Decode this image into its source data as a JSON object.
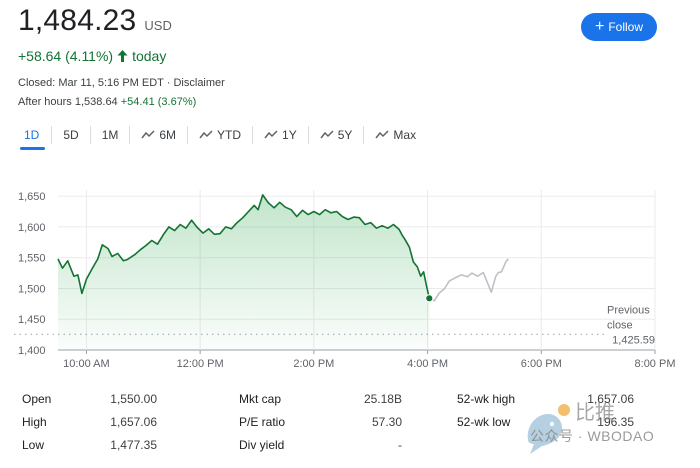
{
  "quote": {
    "price": "1,484.23",
    "currency": "USD",
    "change": "+58.64 (4.11%)",
    "change_arrow": "arrow-up-icon",
    "period": "today",
    "closed": "Closed: Mar 11, 5:16 PM EDT · Disclaimer",
    "after_label": "After hours 1,538.64",
    "after_change": "+54.41 (3.67%)"
  },
  "follow_button": {
    "label": "Follow",
    "icon": "plus-icon"
  },
  "tabs": [
    {
      "label": "1D",
      "active": true,
      "icon": ""
    },
    {
      "label": "5D",
      "active": false,
      "icon": ""
    },
    {
      "label": "1M",
      "active": false,
      "icon": ""
    },
    {
      "label": "6M",
      "active": false,
      "icon": "trend-icon"
    },
    {
      "label": "YTD",
      "active": false,
      "icon": "trend-icon"
    },
    {
      "label": "1Y",
      "active": false,
      "icon": "trend-icon"
    },
    {
      "label": "5Y",
      "active": false,
      "icon": "trend-icon"
    },
    {
      "label": "Max",
      "active": false,
      "icon": "trend-icon"
    }
  ],
  "chart_data": {
    "type": "line",
    "ylim": [
      1400,
      1660
    ],
    "y_ticks": [
      {
        "value": 1650,
        "label": "1,650"
      },
      {
        "value": 1600,
        "label": "1,600"
      },
      {
        "value": 1550,
        "label": "1,550"
      },
      {
        "value": 1500,
        "label": "1,500"
      },
      {
        "value": 1450,
        "label": "1,450"
      },
      {
        "value": 1400,
        "label": "1,400"
      }
    ],
    "xlim_hours": [
      9.5,
      20
    ],
    "x_ticks": [
      {
        "value": 10,
        "label": "10:00 AM"
      },
      {
        "value": 12,
        "label": "12:00 PM"
      },
      {
        "value": 14,
        "label": "2:00 PM"
      },
      {
        "value": 16,
        "label": "4:00 PM"
      },
      {
        "value": 18,
        "label": "6:00 PM"
      },
      {
        "value": 20,
        "label": "8:00 PM"
      }
    ],
    "previous_close": {
      "value": 1425.59,
      "label_line1": "Previous",
      "label_line2": "close",
      "label_value": "1,425.59"
    },
    "series": [
      {
        "session": "regular",
        "color": "#137333",
        "points": [
          [
            9.5,
            1548
          ],
          [
            9.58,
            1533
          ],
          [
            9.67,
            1545
          ],
          [
            9.78,
            1520
          ],
          [
            9.85,
            1522
          ],
          [
            9.92,
            1492
          ],
          [
            10.0,
            1515
          ],
          [
            10.1,
            1532
          ],
          [
            10.2,
            1548
          ],
          [
            10.28,
            1571
          ],
          [
            10.38,
            1565
          ],
          [
            10.45,
            1552
          ],
          [
            10.55,
            1557
          ],
          [
            10.65,
            1545
          ],
          [
            10.72,
            1547
          ],
          [
            10.85,
            1555
          ],
          [
            10.95,
            1563
          ],
          [
            11.05,
            1570
          ],
          [
            11.15,
            1578
          ],
          [
            11.25,
            1572
          ],
          [
            11.35,
            1587
          ],
          [
            11.45,
            1600
          ],
          [
            11.55,
            1594
          ],
          [
            11.65,
            1604
          ],
          [
            11.75,
            1598
          ],
          [
            11.85,
            1611
          ],
          [
            11.95,
            1599
          ],
          [
            12.05,
            1590
          ],
          [
            12.15,
            1597
          ],
          [
            12.25,
            1588
          ],
          [
            12.35,
            1589
          ],
          [
            12.45,
            1600
          ],
          [
            12.55,
            1597
          ],
          [
            12.65,
            1607
          ],
          [
            12.75,
            1615
          ],
          [
            12.85,
            1625
          ],
          [
            12.95,
            1635
          ],
          [
            13.02,
            1628
          ],
          [
            13.1,
            1652
          ],
          [
            13.2,
            1639
          ],
          [
            13.3,
            1631
          ],
          [
            13.4,
            1640
          ],
          [
            13.5,
            1632
          ],
          [
            13.6,
            1628
          ],
          [
            13.7,
            1617
          ],
          [
            13.8,
            1627
          ],
          [
            13.9,
            1620
          ],
          [
            14.0,
            1625
          ],
          [
            14.1,
            1620
          ],
          [
            14.2,
            1628
          ],
          [
            14.3,
            1623
          ],
          [
            14.4,
            1625
          ],
          [
            14.5,
            1617
          ],
          [
            14.6,
            1612
          ],
          [
            14.7,
            1616
          ],
          [
            14.8,
            1615
          ],
          [
            14.9,
            1604
          ],
          [
            15.0,
            1607
          ],
          [
            15.1,
            1598
          ],
          [
            15.2,
            1602
          ],
          [
            15.3,
            1598
          ],
          [
            15.4,
            1604
          ],
          [
            15.5,
            1596
          ],
          [
            15.55,
            1587
          ],
          [
            15.6,
            1580
          ],
          [
            15.68,
            1567
          ],
          [
            15.75,
            1543
          ],
          [
            15.82,
            1535
          ],
          [
            15.88,
            1520
          ],
          [
            15.93,
            1527
          ],
          [
            15.98,
            1505
          ],
          [
            16.03,
            1484
          ]
        ]
      },
      {
        "session": "after-hours",
        "color": "#bdc1c6",
        "points": [
          [
            16.03,
            1484
          ],
          [
            16.12,
            1480
          ],
          [
            16.2,
            1492
          ],
          [
            16.3,
            1500
          ],
          [
            16.38,
            1512
          ],
          [
            16.5,
            1518
          ],
          [
            16.6,
            1522
          ],
          [
            16.7,
            1519
          ],
          [
            16.78,
            1525
          ],
          [
            16.88,
            1520
          ],
          [
            16.98,
            1526
          ],
          [
            17.05,
            1510
          ],
          [
            17.12,
            1494
          ],
          [
            17.2,
            1520
          ],
          [
            17.25,
            1526
          ],
          [
            17.3,
            1527
          ],
          [
            17.38,
            1544
          ],
          [
            17.42,
            1548
          ]
        ]
      }
    ],
    "last_point": [
      16.03,
      1484
    ]
  },
  "stats": {
    "col1": [
      {
        "label": "Open",
        "value": "1,550.00"
      },
      {
        "label": "High",
        "value": "1,657.06"
      },
      {
        "label": "Low",
        "value": "1,477.35"
      }
    ],
    "col2": [
      {
        "label": "Mkt cap",
        "value": "25.18B"
      },
      {
        "label": "P/E ratio",
        "value": "57.30"
      },
      {
        "label": "Div yield",
        "value": "-"
      }
    ],
    "col3": [
      {
        "label": "52-wk high",
        "value": "1,657.06"
      },
      {
        "label": "52-wk low",
        "value": "196.35"
      }
    ]
  },
  "watermark": {
    "line1": "比推",
    "line2": "公众号 · WBODAO"
  }
}
